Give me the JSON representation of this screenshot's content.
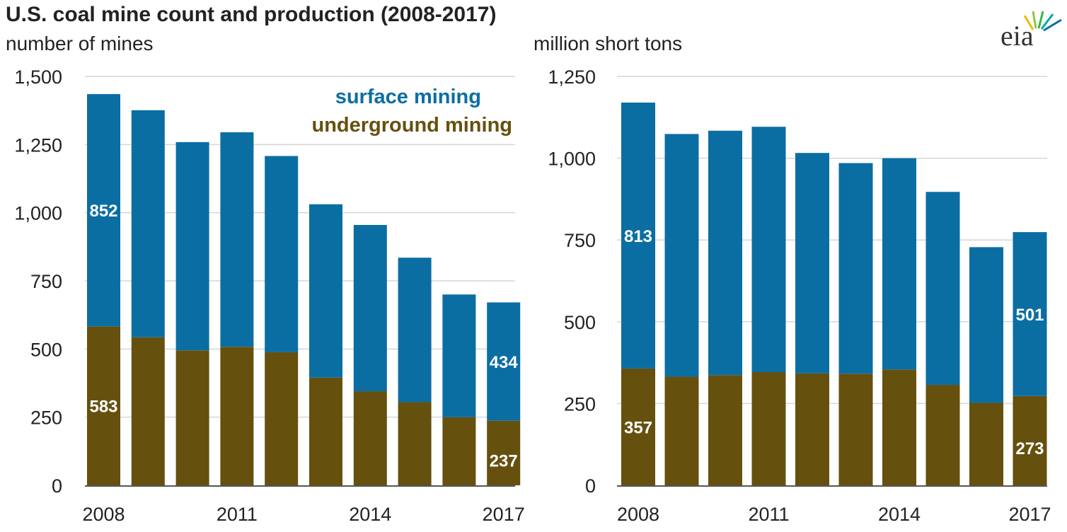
{
  "title": "U.S. coal mine count and production (2008-2017)",
  "brand": {
    "logo_text": "eia"
  },
  "colors": {
    "surface": "#0b6ea3",
    "underground": "#66500e",
    "grid": "#d6d6d6",
    "axis": "#555555"
  },
  "legend": {
    "surface": "surface mining",
    "underground": "underground mining"
  },
  "chart_data": [
    {
      "type": "bar",
      "stacked": true,
      "ylabel": "number of mines",
      "ylim": [
        0,
        1500
      ],
      "yticks": [
        0,
        250,
        500,
        750,
        1000,
        1250,
        1500
      ],
      "ytick_labels": [
        "0",
        "250",
        "500",
        "750",
        "1,000",
        "1,250",
        "1,500"
      ],
      "categories": [
        "2008",
        "2009",
        "2010",
        "2011",
        "2012",
        "2013",
        "2014",
        "2015",
        "2016",
        "2017"
      ],
      "xtick_labels": [
        "2008",
        "",
        "",
        "2011",
        "",
        "",
        "2014",
        "",
        "",
        "2017"
      ],
      "series": [
        {
          "name": "underground mining",
          "values": [
            583,
            543,
            495,
            508,
            488,
            395,
            345,
            305,
            250,
            237
          ]
        },
        {
          "name": "surface mining",
          "values": [
            852,
            833,
            764,
            787,
            720,
            636,
            610,
            530,
            450,
            434
          ]
        }
      ],
      "annotations": [
        {
          "series": 0,
          "index": 0,
          "text": "583"
        },
        {
          "series": 1,
          "index": 0,
          "text": "852"
        },
        {
          "series": 0,
          "index": 9,
          "text": "237"
        },
        {
          "series": 1,
          "index": 9,
          "text": "434"
        }
      ]
    },
    {
      "type": "bar",
      "stacked": true,
      "ylabel": "million short tons",
      "ylim": [
        0,
        1250
      ],
      "yticks": [
        0,
        250,
        500,
        750,
        1000,
        1250
      ],
      "ytick_labels": [
        "0",
        "250",
        "500",
        "750",
        "1,000",
        "1,250"
      ],
      "categories": [
        "2008",
        "2009",
        "2010",
        "2011",
        "2012",
        "2013",
        "2014",
        "2015",
        "2016",
        "2017"
      ],
      "xtick_labels": [
        "2008",
        "",
        "",
        "2011",
        "",
        "",
        "2014",
        "",
        "",
        "2017"
      ],
      "series": [
        {
          "name": "underground mining",
          "values": [
            357,
            332,
            337,
            346,
            342,
            341,
            354,
            307,
            252,
            273
          ]
        },
        {
          "name": "surface mining",
          "values": [
            813,
            742,
            747,
            750,
            674,
            644,
            646,
            590,
            476,
            501
          ]
        }
      ],
      "annotations": [
        {
          "series": 0,
          "index": 0,
          "text": "357"
        },
        {
          "series": 1,
          "index": 0,
          "text": "813"
        },
        {
          "series": 0,
          "index": 9,
          "text": "273"
        },
        {
          "series": 1,
          "index": 9,
          "text": "501"
        }
      ]
    }
  ]
}
